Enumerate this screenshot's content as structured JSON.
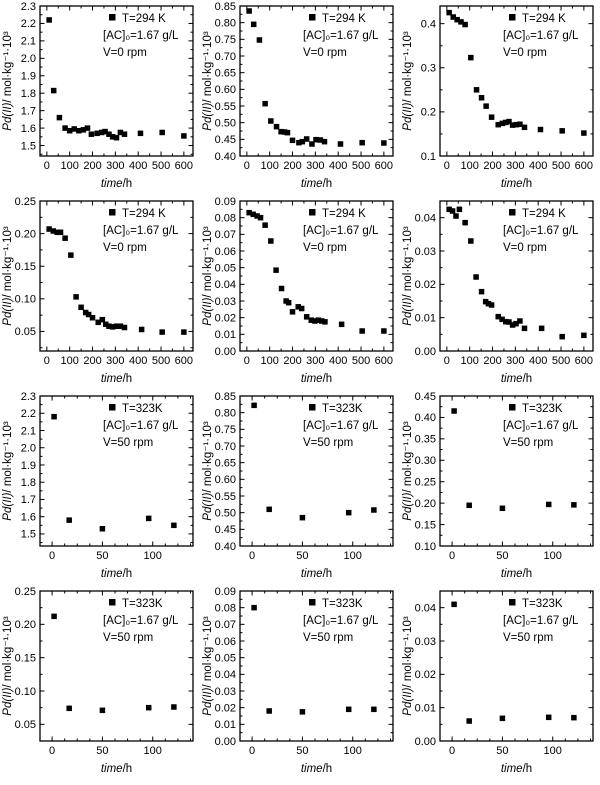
{
  "figure": {
    "background": "#ffffff",
    "marker_color": "#000000",
    "axis_color": "#000000",
    "xlabel_italic": "time",
    "xlabel_rest": "/h",
    "ylabel_italic": "Pd(II)",
    "ylabel_rest": "/ mol·kg⁻¹·10³"
  },
  "chart_data": [
    {
      "type": "scatter",
      "grid": false,
      "legend_pos": "top-right",
      "title": "",
      "xlabel": "time/h",
      "ylabel": "Pd(II)/ mol·kg⁻¹·10³",
      "legend_lines": [
        "T=294 K",
        "[AC]₀=1.67 g/L",
        "V=0 rpm"
      ],
      "xlim": [
        -30,
        640
      ],
      "xticks": [
        0,
        100,
        200,
        300,
        400,
        500,
        600
      ],
      "x_minor_div": 2,
      "ylim": [
        1.44,
        2.3
      ],
      "yticks": [
        1.5,
        1.6,
        1.7,
        1.8,
        1.9,
        2.0,
        2.1,
        2.2,
        2.3
      ],
      "ydecimals": 1,
      "y_minor_div": 2,
      "points": [
        [
          10,
          2.22
        ],
        [
          30,
          1.815
        ],
        [
          55,
          1.66
        ],
        [
          80,
          1.6
        ],
        [
          100,
          1.585
        ],
        [
          120,
          1.595
        ],
        [
          140,
          1.585
        ],
        [
          160,
          1.59
        ],
        [
          178,
          1.6
        ],
        [
          195,
          1.565
        ],
        [
          220,
          1.57
        ],
        [
          240,
          1.575
        ],
        [
          255,
          1.58
        ],
        [
          272,
          1.565
        ],
        [
          288,
          1.55
        ],
        [
          305,
          1.545
        ],
        [
          322,
          1.575
        ],
        [
          340,
          1.565
        ],
        [
          410,
          1.57
        ],
        [
          505,
          1.575
        ],
        [
          600,
          1.555
        ]
      ]
    },
    {
      "type": "scatter",
      "grid": false,
      "legend_pos": "top-right",
      "title": "",
      "xlabel": "time/h",
      "ylabel": "Pd(II)/ mol·kg⁻¹·10³",
      "legend_lines": [
        "T=294 K",
        "[AC]₀=1.67 g/L",
        "V=0 rpm"
      ],
      "xlim": [
        -30,
        640
      ],
      "xticks": [
        0,
        100,
        200,
        300,
        400,
        500,
        600
      ],
      "x_minor_div": 2,
      "ylim": [
        0.4,
        0.85
      ],
      "yticks": [
        0.4,
        0.45,
        0.5,
        0.55,
        0.6,
        0.65,
        0.7,
        0.75,
        0.8,
        0.85
      ],
      "ydecimals": 2,
      "y_minor_div": 2,
      "points": [
        [
          10,
          0.835
        ],
        [
          30,
          0.795
        ],
        [
          55,
          0.748
        ],
        [
          80,
          0.557
        ],
        [
          105,
          0.505
        ],
        [
          130,
          0.488
        ],
        [
          150,
          0.473
        ],
        [
          165,
          0.472
        ],
        [
          178,
          0.47
        ],
        [
          200,
          0.447
        ],
        [
          228,
          0.44
        ],
        [
          243,
          0.443
        ],
        [
          262,
          0.451
        ],
        [
          285,
          0.436
        ],
        [
          303,
          0.449
        ],
        [
          322,
          0.448
        ],
        [
          340,
          0.443
        ],
        [
          410,
          0.436
        ],
        [
          505,
          0.44
        ],
        [
          600,
          0.439
        ]
      ]
    },
    {
      "type": "scatter",
      "grid": false,
      "legend_pos": "top-right",
      "title": "",
      "xlabel": "time/h",
      "ylabel": "Pd(II)/ mol·kg⁻¹·10³",
      "legend_lines": [
        "T=294 K",
        "[AC]₀=1.67 g/L",
        "V=0 rpm"
      ],
      "xlim": [
        -30,
        640
      ],
      "xticks": [
        0,
        100,
        200,
        300,
        400,
        500,
        600
      ],
      "x_minor_div": 2,
      "ylim": [
        0.1,
        0.44
      ],
      "yticks": [
        0.1,
        0.2,
        0.3,
        0.4
      ],
      "ydecimals": 1,
      "y_minor_div": 2,
      "points": [
        [
          10,
          0.425
        ],
        [
          28,
          0.415
        ],
        [
          45,
          0.409
        ],
        [
          62,
          0.404
        ],
        [
          80,
          0.398
        ],
        [
          105,
          0.323
        ],
        [
          130,
          0.25
        ],
        [
          152,
          0.232
        ],
        [
          172,
          0.213
        ],
        [
          196,
          0.188
        ],
        [
          225,
          0.171
        ],
        [
          243,
          0.174
        ],
        [
          258,
          0.176
        ],
        [
          272,
          0.178
        ],
        [
          288,
          0.17
        ],
        [
          305,
          0.171
        ],
        [
          320,
          0.172
        ],
        [
          340,
          0.165
        ],
        [
          410,
          0.16
        ],
        [
          505,
          0.157
        ],
        [
          600,
          0.152
        ]
      ]
    },
    {
      "type": "scatter",
      "grid": false,
      "legend_pos": "top-right",
      "title": "",
      "xlabel": "time/h",
      "ylabel": "Pd(II)/ mol·kg⁻¹·10³",
      "legend_lines": [
        "T=294 K",
        "[AC]₀=1.67 g/L",
        "V=0 rpm"
      ],
      "xlim": [
        -30,
        640
      ],
      "xticks": [
        0,
        100,
        200,
        300,
        400,
        500,
        600
      ],
      "x_minor_div": 2,
      "ylim": [
        0.02,
        0.25
      ],
      "yticks": [
        0.05,
        0.1,
        0.15,
        0.2,
        0.25
      ],
      "ydecimals": 2,
      "y_minor_div": 2,
      "points": [
        [
          10,
          0.207
        ],
        [
          28,
          0.204
        ],
        [
          45,
          0.202
        ],
        [
          60,
          0.202
        ],
        [
          80,
          0.193
        ],
        [
          105,
          0.167
        ],
        [
          128,
          0.103
        ],
        [
          150,
          0.087
        ],
        [
          170,
          0.079
        ],
        [
          183,
          0.076
        ],
        [
          200,
          0.071
        ],
        [
          225,
          0.064
        ],
        [
          243,
          0.068
        ],
        [
          258,
          0.061
        ],
        [
          272,
          0.058
        ],
        [
          288,
          0.057
        ],
        [
          305,
          0.058
        ],
        [
          322,
          0.058
        ],
        [
          340,
          0.056
        ],
        [
          415,
          0.053
        ],
        [
          505,
          0.049
        ],
        [
          600,
          0.049
        ]
      ]
    },
    {
      "type": "scatter",
      "grid": false,
      "legend_pos": "top-right",
      "title": "",
      "xlabel": "time/h",
      "ylabel": "Pd(II)/ mol·kg⁻¹·10³",
      "legend_lines": [
        "T=294 K",
        "[AC]₀=1.67 g/L",
        "V=0 rpm"
      ],
      "xlim": [
        -30,
        640
      ],
      "xticks": [
        0,
        100,
        200,
        300,
        400,
        500,
        600
      ],
      "x_minor_div": 2,
      "ylim": [
        0.0,
        0.09
      ],
      "yticks": [
        0.0,
        0.01,
        0.02,
        0.03,
        0.04,
        0.05,
        0.06,
        0.07,
        0.08,
        0.09
      ],
      "ydecimals": 2,
      "y_minor_div": 2,
      "points": [
        [
          10,
          0.083
        ],
        [
          28,
          0.082
        ],
        [
          45,
          0.081
        ],
        [
          60,
          0.08
        ],
        [
          80,
          0.0755
        ],
        [
          105,
          0.066
        ],
        [
          128,
          0.0485
        ],
        [
          152,
          0.0375
        ],
        [
          172,
          0.03
        ],
        [
          183,
          0.029
        ],
        [
          200,
          0.0235
        ],
        [
          225,
          0.0265
        ],
        [
          240,
          0.0255
        ],
        [
          262,
          0.0205
        ],
        [
          282,
          0.0185
        ],
        [
          298,
          0.018
        ],
        [
          313,
          0.0185
        ],
        [
          328,
          0.018
        ],
        [
          342,
          0.0175
        ],
        [
          415,
          0.016
        ],
        [
          505,
          0.012
        ],
        [
          600,
          0.012
        ]
      ]
    },
    {
      "type": "scatter",
      "grid": false,
      "legend_pos": "top-right",
      "title": "",
      "xlabel": "time/h",
      "ylabel": "Pd(II)/ mol·kg⁻¹·10³",
      "legend_lines": [
        "T=294 K",
        "[AC]₀=1.67 g/L",
        "V=0 rpm"
      ],
      "xlim": [
        -30,
        640
      ],
      "xticks": [
        0,
        100,
        200,
        300,
        400,
        500,
        600
      ],
      "x_minor_div": 2,
      "ylim": [
        0.0,
        0.045
      ],
      "yticks": [
        0.0,
        0.01,
        0.02,
        0.03,
        0.04
      ],
      "ydecimals": 2,
      "y_minor_div": 2,
      "points": [
        [
          10,
          0.0425
        ],
        [
          25,
          0.042
        ],
        [
          40,
          0.0405
        ],
        [
          55,
          0.0425
        ],
        [
          80,
          0.0385
        ],
        [
          105,
          0.033
        ],
        [
          128,
          0.0222
        ],
        [
          152,
          0.0178
        ],
        [
          170,
          0.0148
        ],
        [
          182,
          0.0142
        ],
        [
          196,
          0.0138
        ],
        [
          225,
          0.0103
        ],
        [
          242,
          0.0095
        ],
        [
          258,
          0.0088
        ],
        [
          272,
          0.0087
        ],
        [
          288,
          0.0078
        ],
        [
          303,
          0.0082
        ],
        [
          320,
          0.009
        ],
        [
          340,
          0.0068
        ],
        [
          415,
          0.0068
        ],
        [
          505,
          0.0043
        ],
        [
          600,
          0.0047
        ]
      ]
    },
    {
      "type": "scatter",
      "grid": false,
      "legend_pos": "top-right",
      "title": "",
      "xlabel": "time/h",
      "ylabel": "Pd(II)/ mol·kg⁻¹·10³",
      "legend_lines": [
        "T=323K",
        "[AC]₀=1.67 g/L",
        "V=50 rpm"
      ],
      "xlim": [
        -12,
        140
      ],
      "xticks": [
        0,
        50,
        100
      ],
      "x_minor_div": 4,
      "ylim": [
        1.43,
        2.3
      ],
      "yticks": [
        1.5,
        1.6,
        1.7,
        1.8,
        1.9,
        2.0,
        2.1,
        2.2,
        2.3
      ],
      "ydecimals": 1,
      "y_minor_div": 2,
      "points": [
        [
          2,
          2.18
        ],
        [
          17,
          1.58
        ],
        [
          50,
          1.53
        ],
        [
          96,
          1.59
        ],
        [
          121,
          1.55
        ]
      ]
    },
    {
      "type": "scatter",
      "grid": false,
      "legend_pos": "top-right",
      "title": "",
      "xlabel": "time/h",
      "ylabel": "Pd(II)/ mol·kg⁻¹·10³",
      "legend_lines": [
        "T=323K",
        "[AC]₀=1.67 g/L",
        "V=50 rpm"
      ],
      "xlim": [
        -12,
        140
      ],
      "xticks": [
        0,
        50,
        100
      ],
      "x_minor_div": 4,
      "ylim": [
        0.4,
        0.85
      ],
      "yticks": [
        0.4,
        0.45,
        0.5,
        0.55,
        0.6,
        0.65,
        0.7,
        0.75,
        0.8,
        0.85
      ],
      "ydecimals": 2,
      "y_minor_div": 2,
      "points": [
        [
          2,
          0.822
        ],
        [
          17,
          0.51
        ],
        [
          50,
          0.485
        ],
        [
          96,
          0.5
        ],
        [
          121,
          0.508
        ]
      ]
    },
    {
      "type": "scatter",
      "grid": false,
      "legend_pos": "top-right",
      "title": "",
      "xlabel": "time/h",
      "ylabel": "Pd(II)/ mol·kg⁻¹·10³",
      "legend_lines": [
        "T=323K",
        "[AC]₀=1.67 g/L",
        "V=50 rpm"
      ],
      "xlim": [
        -12,
        140
      ],
      "xticks": [
        0,
        50,
        100
      ],
      "x_minor_div": 4,
      "ylim": [
        0.1,
        0.45
      ],
      "yticks": [
        0.1,
        0.15,
        0.2,
        0.25,
        0.3,
        0.35,
        0.4,
        0.45
      ],
      "ydecimals": 2,
      "y_minor_div": 2,
      "points": [
        [
          2,
          0.415
        ],
        [
          17,
          0.195
        ],
        [
          50,
          0.188
        ],
        [
          96,
          0.197
        ],
        [
          121,
          0.196
        ]
      ]
    },
    {
      "type": "scatter",
      "grid": false,
      "legend_pos": "top-right",
      "title": "",
      "xlabel": "time/h",
      "ylabel": "Pd(II)/ mol·kg⁻¹·10³",
      "legend_lines": [
        "T=323K",
        "[AC]₀=1.67 g/L",
        "V=50 rpm"
      ],
      "xlim": [
        -12,
        140
      ],
      "xticks": [
        0,
        50,
        100
      ],
      "x_minor_div": 4,
      "ylim": [
        0.025,
        0.25
      ],
      "yticks": [
        0.05,
        0.1,
        0.15,
        0.2,
        0.25
      ],
      "ydecimals": 2,
      "y_minor_div": 2,
      "points": [
        [
          2,
          0.212
        ],
        [
          17,
          0.074
        ],
        [
          50,
          0.071
        ],
        [
          96,
          0.075
        ],
        [
          121,
          0.076
        ]
      ]
    },
    {
      "type": "scatter",
      "grid": false,
      "legend_pos": "top-right",
      "title": "",
      "xlabel": "time/h",
      "ylabel": "Pd(II)/ mol·kg⁻¹·10³",
      "legend_lines": [
        "T=323K",
        "[AC]₀=1.67 g/L",
        "V=50 rpm"
      ],
      "xlim": [
        -12,
        140
      ],
      "xticks": [
        0,
        50,
        100
      ],
      "x_minor_div": 4,
      "ylim": [
        0.0,
        0.09
      ],
      "yticks": [
        0.0,
        0.01,
        0.02,
        0.03,
        0.04,
        0.05,
        0.06,
        0.07,
        0.08,
        0.09
      ],
      "ydecimals": 2,
      "y_minor_div": 2,
      "points": [
        [
          2,
          0.08
        ],
        [
          17,
          0.018
        ],
        [
          50,
          0.0175
        ],
        [
          96,
          0.019
        ],
        [
          121,
          0.019
        ]
      ]
    },
    {
      "type": "scatter",
      "grid": false,
      "legend_pos": "top-right",
      "title": "",
      "xlabel": "time/h",
      "ylabel": "Pd(II)/ mol·kg⁻¹·10³",
      "legend_lines": [
        "T=323K",
        "[AC]₀=1.67 g/L",
        "V=50 rpm"
      ],
      "xlim": [
        -12,
        140
      ],
      "xticks": [
        0,
        50,
        100
      ],
      "x_minor_div": 4,
      "ylim": [
        0.0,
        0.045
      ],
      "yticks": [
        0.0,
        0.01,
        0.02,
        0.03,
        0.04
      ],
      "ydecimals": 2,
      "y_minor_div": 2,
      "points": [
        [
          2,
          0.041
        ],
        [
          17,
          0.006
        ],
        [
          50,
          0.0068
        ],
        [
          96,
          0.0071
        ],
        [
          121,
          0.007
        ]
      ]
    }
  ]
}
